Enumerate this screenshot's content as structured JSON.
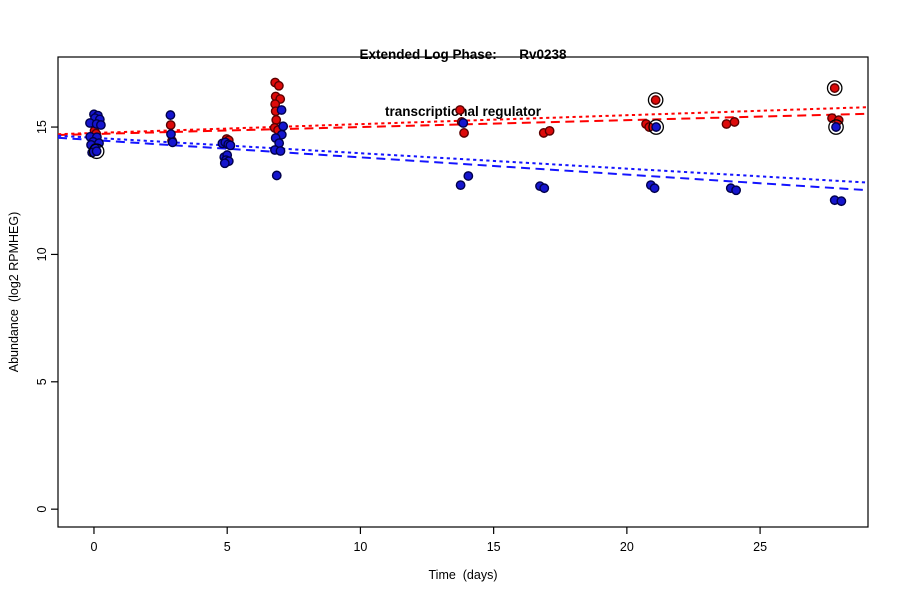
{
  "chart_data": {
    "type": "scatter",
    "title_line1": "Extended Log Phase:      Rv0238",
    "title_line2": "transcriptional regulator",
    "xlabel": "Time  (days)",
    "ylabel": "Abundance  (log2 RPMHEG)",
    "xlim": [
      -1.35,
      29.05
    ],
    "ylim": [
      -0.7,
      17.75
    ],
    "x_ticks": [
      0,
      5,
      10,
      15,
      20,
      25
    ],
    "y_ticks": [
      0,
      5,
      10,
      15
    ],
    "grid": false,
    "legend": "none",
    "colors": {
      "axis": "#000000",
      "red_fill": "#DD0A0A",
      "red_stroke": "#5A0000",
      "blue_fill": "#1515CE",
      "blue_stroke": "#00004A",
      "red_line": "#FF0000",
      "blue_line": "#1414FF",
      "ring": "#000000"
    },
    "series": [
      {
        "name": "red-points",
        "fill": "#DD0A0A",
        "stroke": "#5A0000",
        "points": [
          [
            0.02,
            14.85
          ],
          [
            0.08,
            14.74
          ],
          [
            2.88,
            15.08
          ],
          [
            2.93,
            14.46
          ],
          [
            4.98,
            14.53
          ],
          [
            5.06,
            14.48
          ],
          [
            6.8,
            16.75
          ],
          [
            6.94,
            16.62
          ],
          [
            6.82,
            16.2
          ],
          [
            6.99,
            16.1
          ],
          [
            6.8,
            15.9
          ],
          [
            6.82,
            15.62
          ],
          [
            6.84,
            15.28
          ],
          [
            6.78,
            14.97
          ],
          [
            6.91,
            14.88
          ],
          [
            13.74,
            15.67
          ],
          [
            13.8,
            15.2
          ],
          [
            13.89,
            14.77
          ],
          [
            16.88,
            14.77
          ],
          [
            17.1,
            14.85
          ],
          [
            20.72,
            15.12
          ],
          [
            20.84,
            15.0
          ],
          [
            21.08,
            16.06
          ],
          [
            23.74,
            15.12
          ],
          [
            24.04,
            15.2
          ],
          [
            27.7,
            15.35
          ],
          [
            27.95,
            15.27
          ],
          [
            27.8,
            16.53
          ]
        ]
      },
      {
        "name": "blue-points",
        "fill": "#1515CE",
        "stroke": "#00004A",
        "points": [
          [
            0.0,
            15.5
          ],
          [
            0.15,
            15.45
          ],
          [
            0.04,
            15.35
          ],
          [
            0.22,
            15.3
          ],
          [
            -0.15,
            15.16
          ],
          [
            0.1,
            15.12
          ],
          [
            0.26,
            15.08
          ],
          [
            -0.14,
            14.62
          ],
          [
            0.11,
            14.6
          ],
          [
            -0.03,
            14.42
          ],
          [
            0.19,
            14.37
          ],
          [
            -0.11,
            14.3
          ],
          [
            0.04,
            14.17
          ],
          [
            -0.07,
            14.0
          ],
          [
            0.1,
            14.05
          ],
          [
            2.87,
            15.47
          ],
          [
            2.89,
            14.72
          ],
          [
            2.95,
            14.4
          ],
          [
            4.82,
            14.36
          ],
          [
            4.93,
            14.4
          ],
          [
            5.04,
            14.32
          ],
          [
            5.12,
            14.28
          ],
          [
            4.89,
            13.82
          ],
          [
            5.0,
            13.9
          ],
          [
            4.95,
            13.7
          ],
          [
            5.06,
            13.66
          ],
          [
            4.91,
            13.58
          ],
          [
            7.04,
            15.67
          ],
          [
            7.1,
            15.03
          ],
          [
            7.05,
            14.7
          ],
          [
            6.82,
            14.57
          ],
          [
            6.95,
            14.37
          ],
          [
            6.79,
            14.1
          ],
          [
            7.0,
            14.06
          ],
          [
            6.86,
            13.1
          ],
          [
            13.86,
            15.16
          ],
          [
            14.05,
            13.08
          ],
          [
            13.76,
            12.72
          ],
          [
            16.74,
            12.68
          ],
          [
            16.9,
            12.6
          ],
          [
            20.9,
            12.72
          ],
          [
            21.04,
            12.6
          ],
          [
            21.1,
            15.0
          ],
          [
            23.9,
            12.6
          ],
          [
            24.1,
            12.52
          ],
          [
            27.8,
            12.13
          ],
          [
            28.05,
            12.09
          ],
          [
            27.85,
            15.0
          ]
        ]
      }
    ],
    "circled_points": [
      [
        0.1,
        14.05
      ],
      [
        21.08,
        16.06
      ],
      [
        21.1,
        15.0
      ],
      [
        27.8,
        16.53
      ],
      [
        27.85,
        15.0
      ]
    ],
    "lines": [
      {
        "name": "red-dotted-fit",
        "color": "#FF0000",
        "style": "dotted",
        "x0": -1.35,
        "y0": 14.72,
        "x1": 29.05,
        "y1": 15.78
      },
      {
        "name": "red-dashed-fit",
        "color": "#FF0000",
        "style": "dashed",
        "x0": -1.35,
        "y0": 14.69,
        "x1": 29.05,
        "y1": 15.52
      },
      {
        "name": "blue-dotted-fit",
        "color": "#1414FF",
        "style": "dotted",
        "x0": -1.35,
        "y0": 14.66,
        "x1": 29.05,
        "y1": 12.82
      },
      {
        "name": "blue-dashed-fit",
        "color": "#1414FF",
        "style": "dashed",
        "x0": -1.35,
        "y0": 14.58,
        "x1": 29.05,
        "y1": 12.52
      }
    ]
  }
}
